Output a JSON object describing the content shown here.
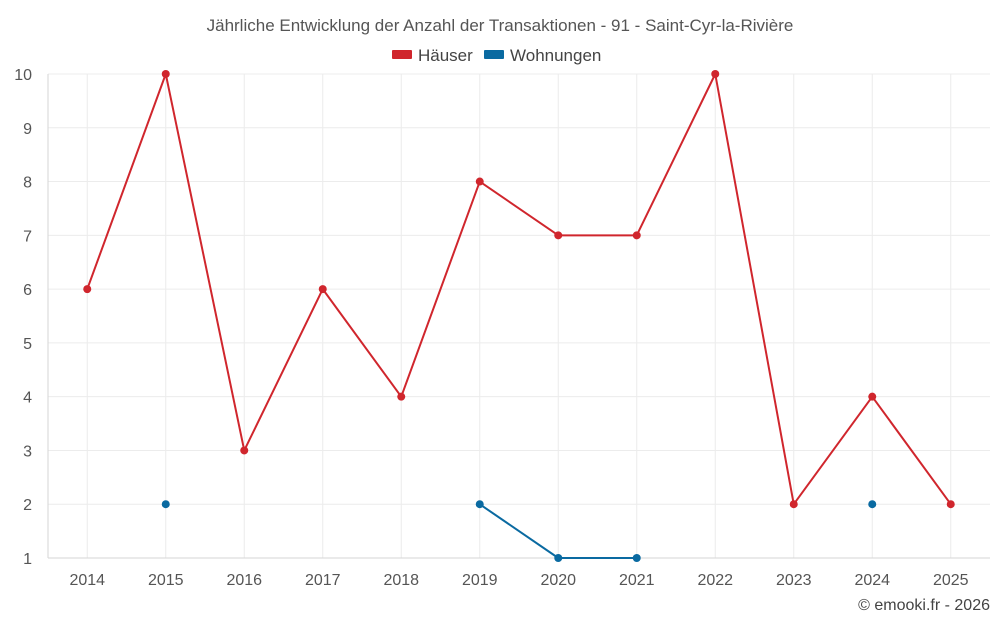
{
  "chart_data": {
    "type": "line",
    "title": "Jährliche Entwicklung der Anzahl der Transaktionen - 91 - Saint-Cyr-la-Rivière",
    "categories": [
      "2014",
      "2015",
      "2016",
      "2017",
      "2018",
      "2019",
      "2020",
      "2021",
      "2022",
      "2023",
      "2024",
      "2025"
    ],
    "series": [
      {
        "name": "Häuser",
        "color": "#d0262d",
        "values": [
          6,
          10,
          3,
          6,
          4,
          8,
          7,
          7,
          10,
          2,
          4,
          2
        ]
      },
      {
        "name": "Wohnungen",
        "color": "#0a6aa1",
        "values": [
          null,
          2,
          null,
          null,
          null,
          2,
          1,
          1,
          null,
          null,
          2,
          null
        ]
      }
    ],
    "ylim": [
      1,
      10
    ],
    "yticks": [
      "1",
      "2",
      "3",
      "4",
      "5",
      "6",
      "7",
      "8",
      "9",
      "10"
    ],
    "xlabel": "",
    "ylabel": "",
    "grid": true,
    "legend_position": "top-center"
  },
  "credit": "© emooki.fr - 2026"
}
